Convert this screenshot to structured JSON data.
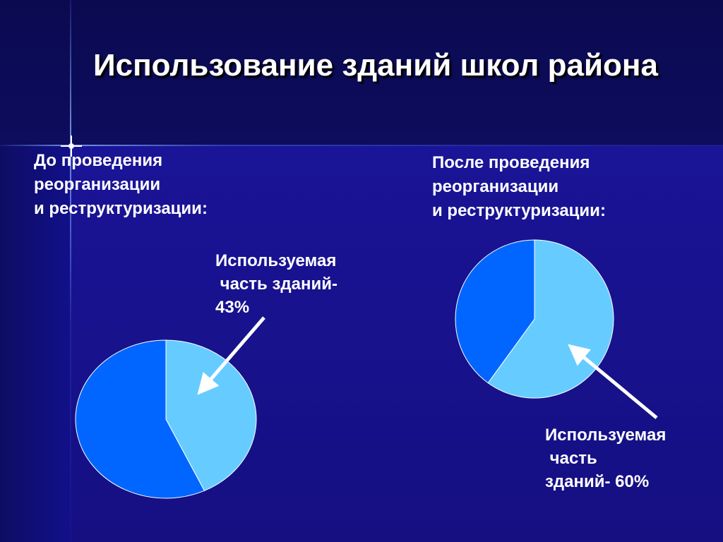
{
  "title": "Использование  зданий школ района",
  "colors": {
    "used": "#66ccff",
    "unused": "#0066ff",
    "background": "#1a148f",
    "text": "#ffffff"
  },
  "chart_data": [
    {
      "type": "pie",
      "title": "До проведения\nреорганизации\nи реструктуризации:",
      "slices": [
        {
          "label": "Используемая часть зданий",
          "value": 43,
          "color": "#66ccff"
        },
        {
          "label": "",
          "value": 57,
          "color": "#0066ff"
        }
      ],
      "annotation": "Используемая\n часть зданий-\n43%"
    },
    {
      "type": "pie",
      "title": "После проведения\nреорганизации\nи реструктуризации:",
      "slices": [
        {
          "label": "Используемая часть",
          "value": 60,
          "color": "#66ccff"
        },
        {
          "label": "",
          "value": 40,
          "color": "#0066ff"
        }
      ],
      "annotation": "Используемая\n часть\nзданий- 60%"
    }
  ]
}
